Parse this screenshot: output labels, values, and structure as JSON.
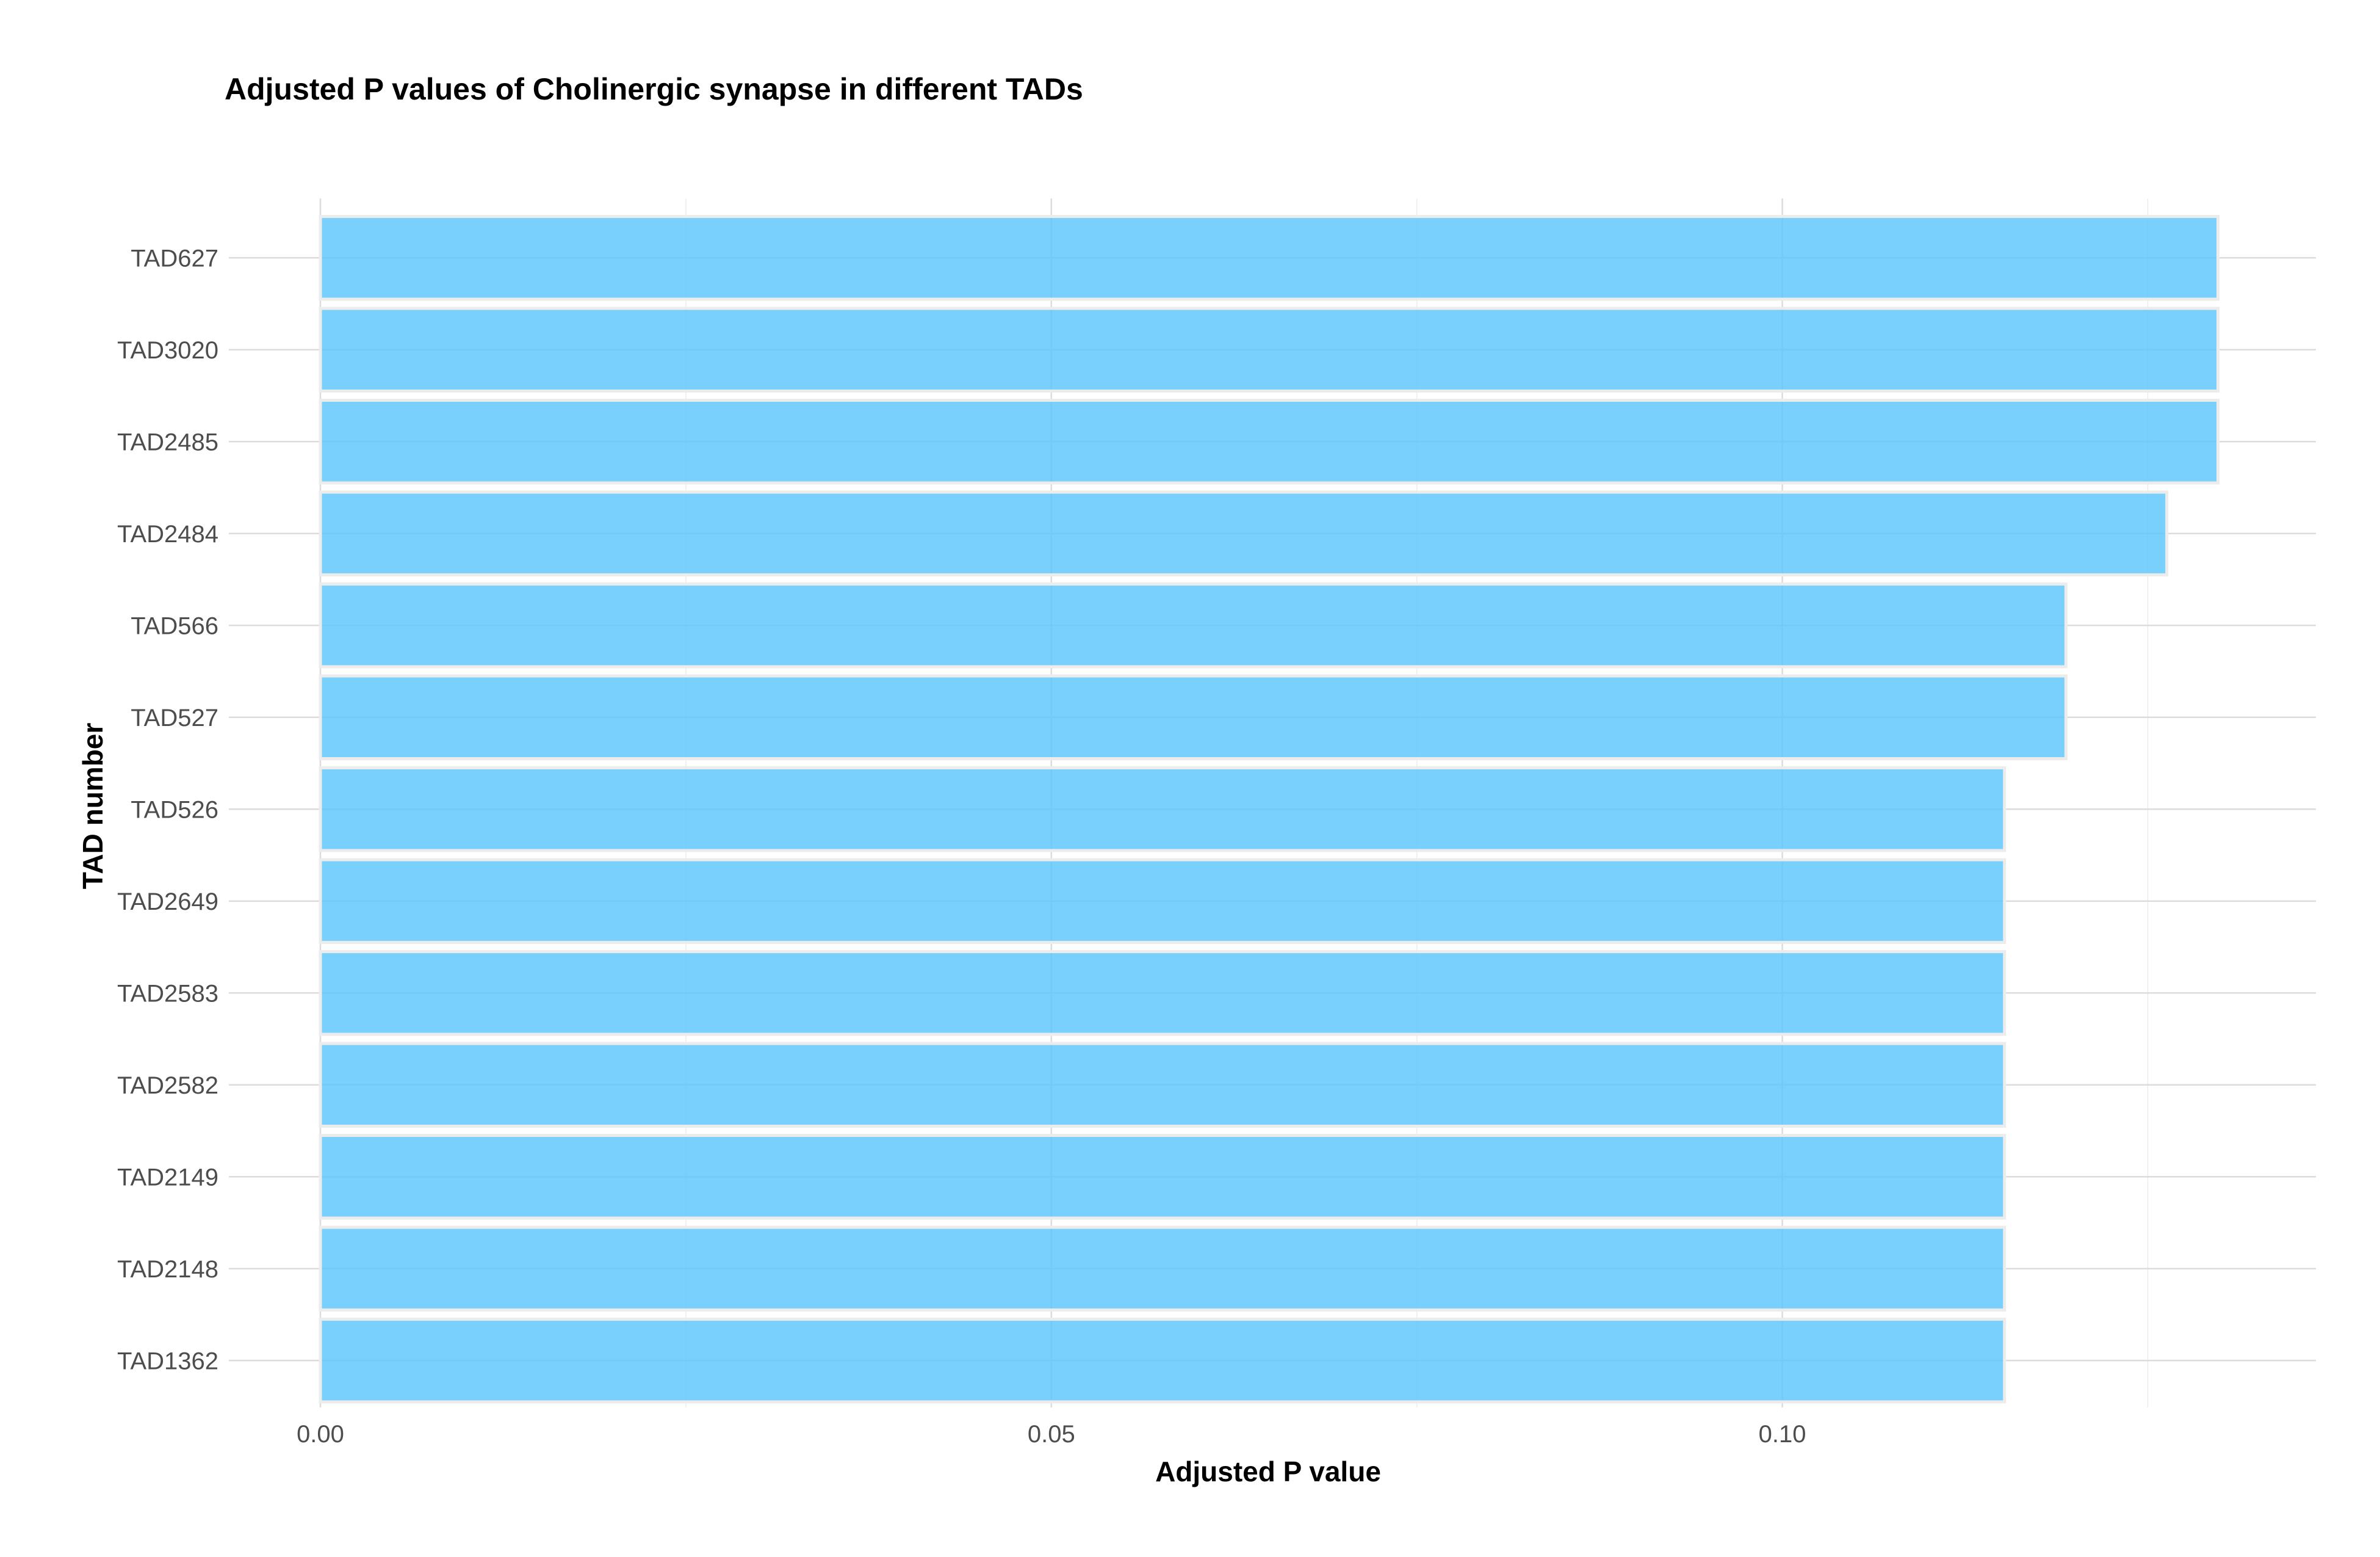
{
  "chart_data": {
    "type": "bar",
    "orientation": "horizontal",
    "title": "Adjusted P values of Cholinergic synapse in different TADs",
    "xlabel": "Adjusted P value",
    "ylabel": "TAD number",
    "categories": [
      "TAD627",
      "TAD3020",
      "TAD2485",
      "TAD2484",
      "TAD566",
      "TAD527",
      "TAD526",
      "TAD2649",
      "TAD2583",
      "TAD2582",
      "TAD2149",
      "TAD2148",
      "TAD1362"
    ],
    "values": [
      0.1298,
      0.1298,
      0.1298,
      0.1263,
      0.1194,
      0.1194,
      0.1152,
      0.1152,
      0.1152,
      0.1152,
      0.1152,
      0.1152,
      0.1152
    ],
    "xlim": [
      0,
      0.1365
    ],
    "xticks": [
      0,
      0.05,
      0.1
    ],
    "xtick_labels": [
      "0.00",
      "0.05",
      "0.10"
    ],
    "xminor": [
      0.025,
      0.075,
      0.125
    ],
    "grid": true,
    "legend": "none",
    "bar_color": "#5bc6fb"
  }
}
